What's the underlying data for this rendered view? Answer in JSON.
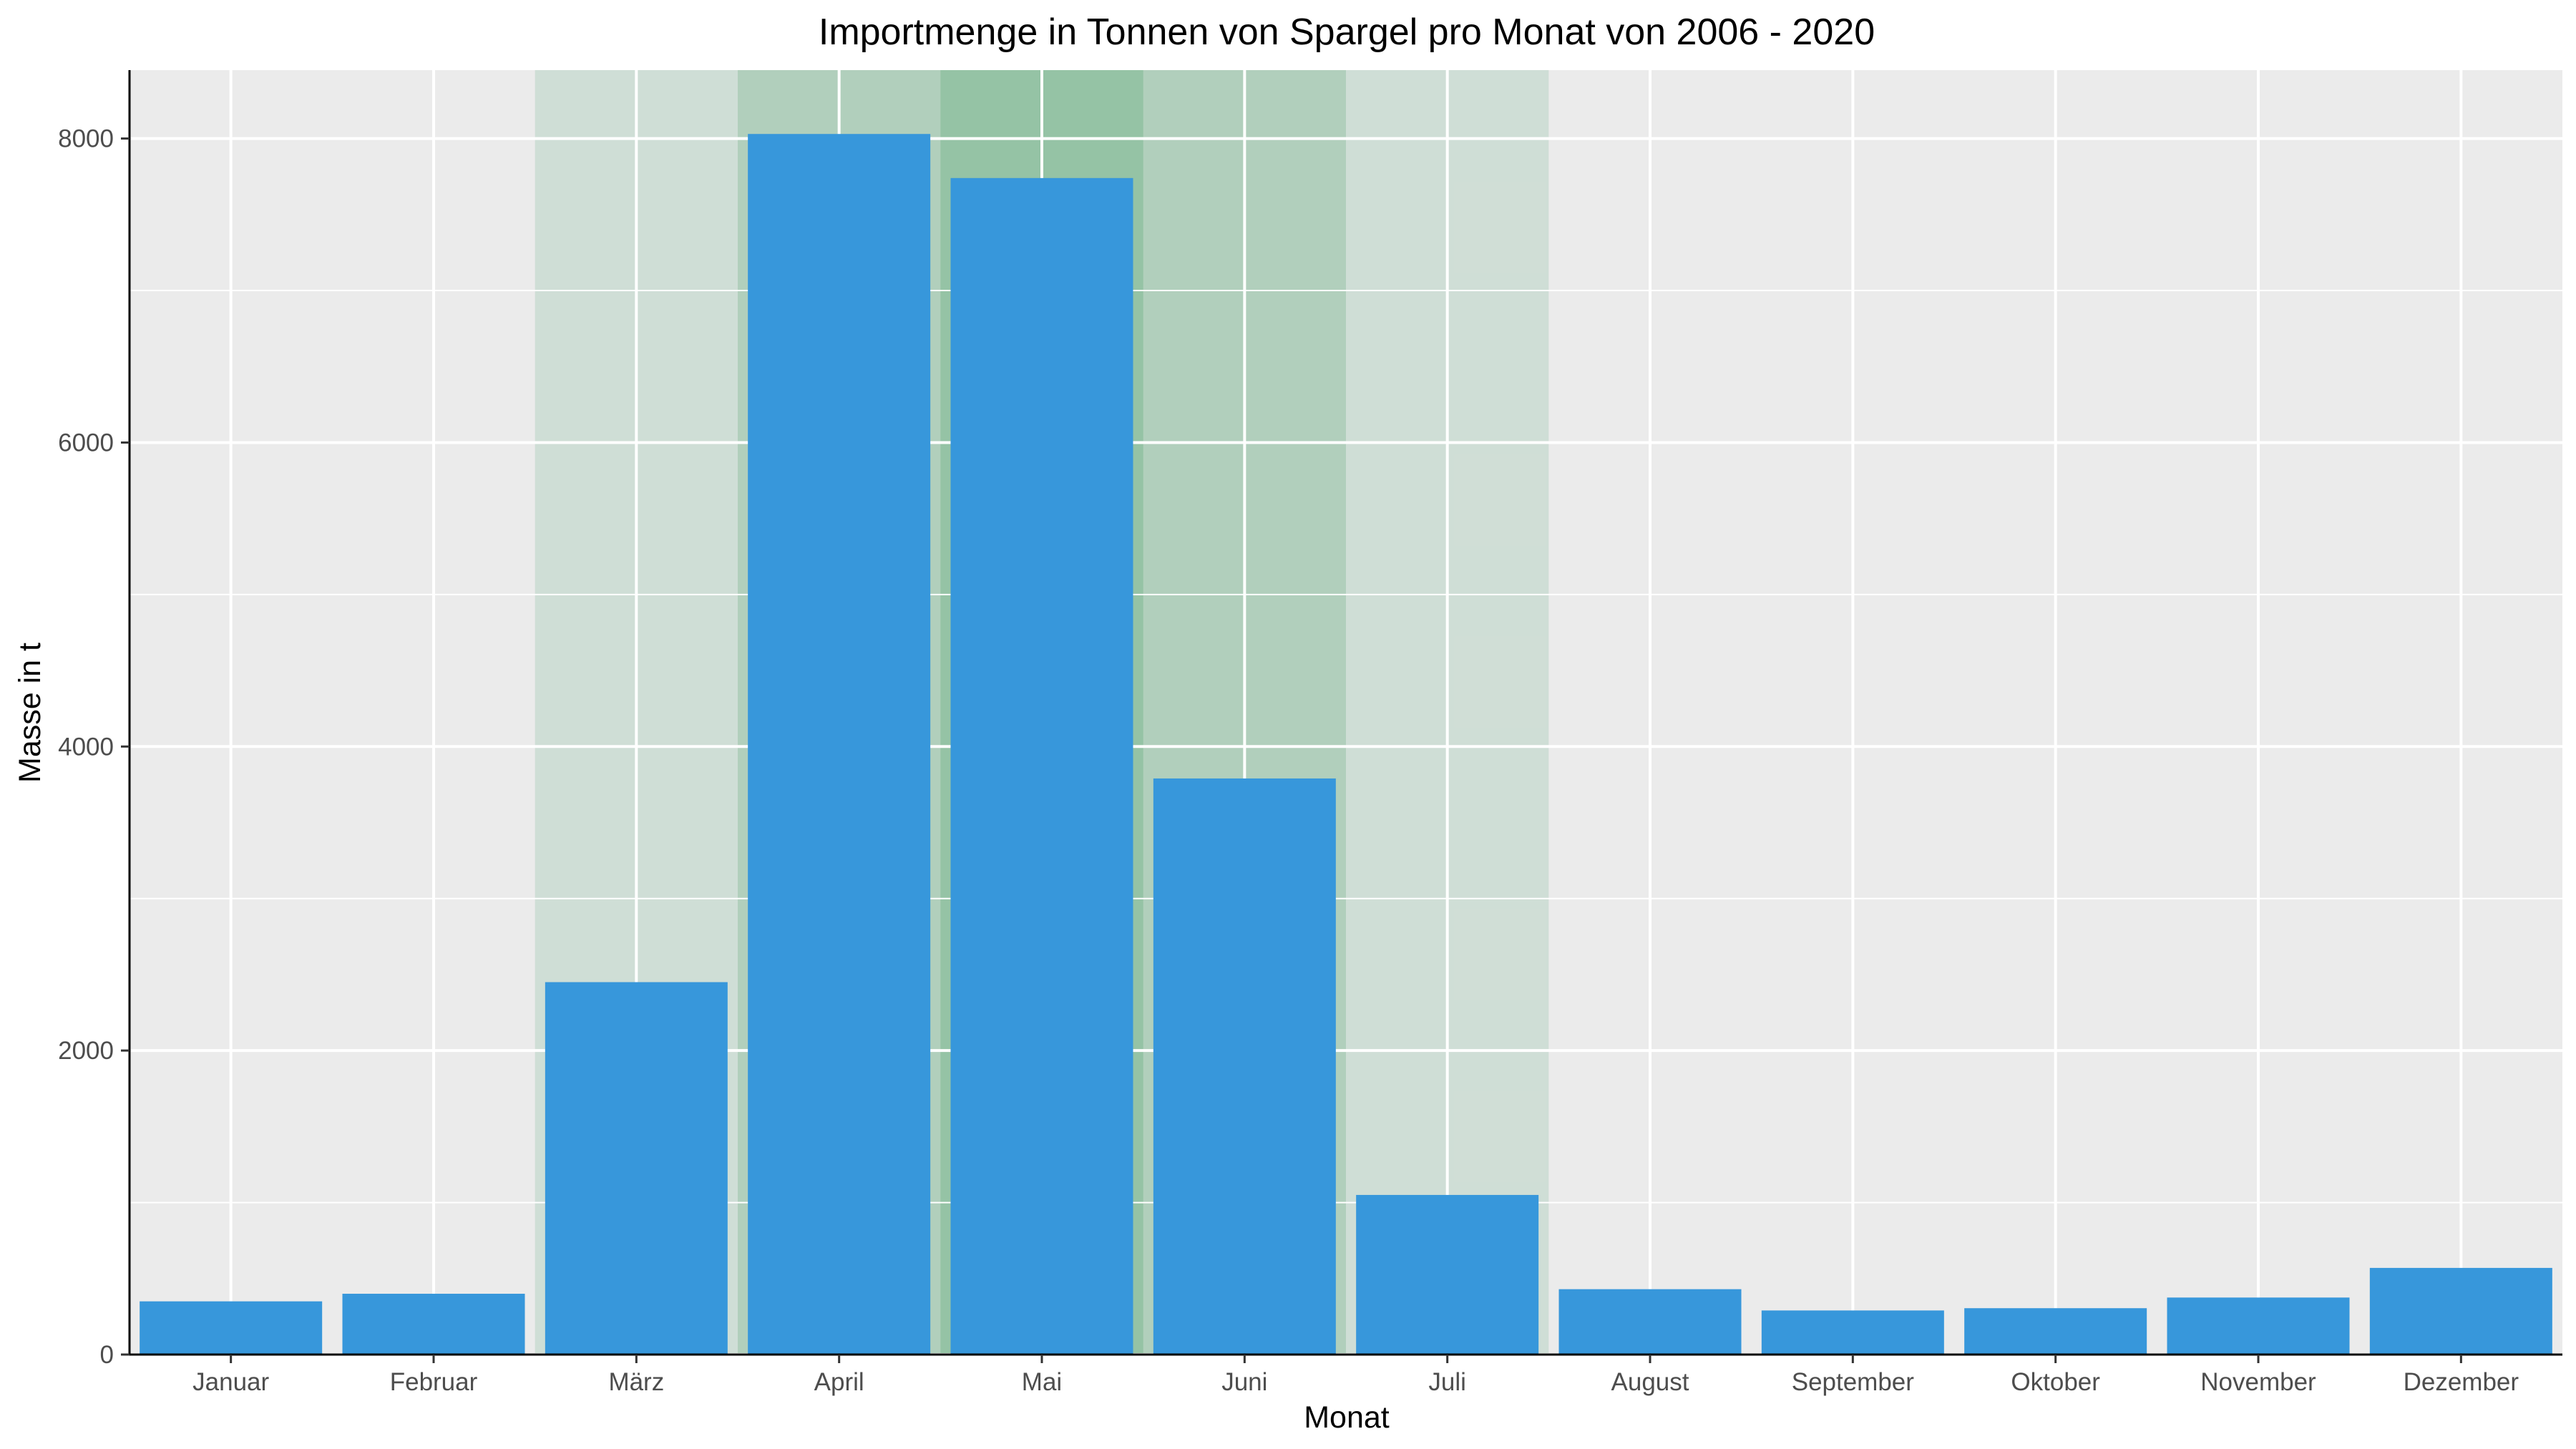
{
  "chart_data": {
    "type": "bar",
    "title": "Importmenge in Tonnen von Spargel pro Monat von 2006 - 2020",
    "xlabel": "Monat",
    "ylabel": "Masse in t",
    "categories": [
      "Januar",
      "Februar",
      "März",
      "April",
      "Mai",
      "Juni",
      "Juli",
      "August",
      "September",
      "Oktober",
      "November",
      "Dezember"
    ],
    "values": [
      350,
      400,
      2450,
      8030,
      7740,
      3790,
      1050,
      430,
      290,
      305,
      375,
      570
    ],
    "ylim": [
      0,
      8450
    ],
    "yticks": [
      0,
      2000,
      4000,
      6000,
      8000
    ],
    "grid": true,
    "bar_color": "#3797db",
    "panel_background": "#ebebeb",
    "season_highlight": [
      {
        "from": "März",
        "to": "Juli",
        "color": "#aecfbc",
        "opacity": 0.45
      },
      {
        "from": "April",
        "to": "Juni",
        "color": "#8bbd9e",
        "opacity": 0.45
      },
      {
        "from": "Mai",
        "to": "Mai",
        "color": "#74b48a",
        "opacity": 0.45
      }
    ]
  }
}
